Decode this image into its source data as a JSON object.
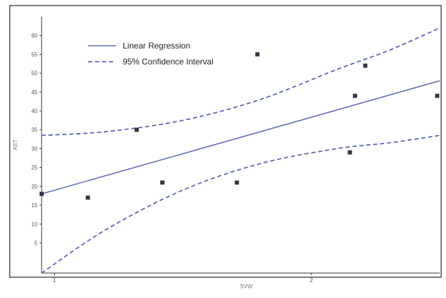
{
  "chart_data": {
    "type": "scatter",
    "xlabel": "SVW",
    "ylabel": "AST",
    "xlim": [
      0.95,
      2.5
    ],
    "ylim": [
      -3,
      65
    ],
    "x_ticks": [
      1,
      2
    ],
    "y_ticks": [
      5,
      10,
      15,
      20,
      25,
      30,
      35,
      40,
      45,
      50,
      55,
      60
    ],
    "grid": false,
    "legend_position": "top-left",
    "colors": {
      "regression": "#5a66b4",
      "confidence": "#5a66b4",
      "points": "#333344",
      "frame": "#222222"
    },
    "points": [
      {
        "x": 0.95,
        "y": 18
      },
      {
        "x": 1.13,
        "y": 17
      },
      {
        "x": 1.32,
        "y": 35
      },
      {
        "x": 1.42,
        "y": 21
      },
      {
        "x": 1.71,
        "y": 21
      },
      {
        "x": 1.79,
        "y": 55
      },
      {
        "x": 2.15,
        "y": 29
      },
      {
        "x": 2.17,
        "y": 44
      },
      {
        "x": 2.21,
        "y": 52
      },
      {
        "x": 2.49,
        "y": 44
      }
    ],
    "series": [
      {
        "name": "Linear Regression",
        "style": "solid",
        "x": [
          0.95,
          2.5
        ],
        "y": [
          18,
          48
        ]
      },
      {
        "name": "95% Confidence Interval",
        "style": "dashed",
        "x": [
          0.95,
          1.2,
          1.5,
          1.8,
          2.1,
          2.3,
          2.5
        ],
        "y": [
          33.5,
          34.5,
          37.5,
          43,
          51,
          56,
          62
        ]
      },
      {
        "name": "",
        "style": "dashed",
        "x": [
          0.95,
          1.2,
          1.5,
          1.8,
          2.1,
          2.3,
          2.5
        ],
        "y": [
          -3,
          8.5,
          19,
          26,
          30,
          31.5,
          33.5
        ]
      }
    ]
  }
}
